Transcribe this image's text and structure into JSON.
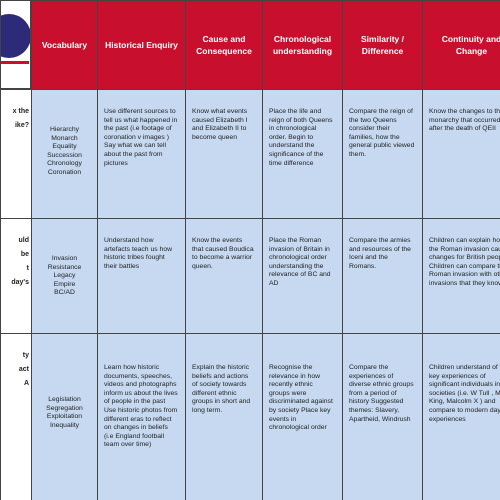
{
  "header": {
    "columns": [
      "Vocabulary",
      "Historical Enquiry",
      "Cause and Consequence",
      "Chronological understanding",
      "Similarity / Difference",
      "Continuity and Change"
    ]
  },
  "rows": [
    {
      "fragments": [
        "x the",
        "ike?"
      ],
      "vocabulary": [
        "Hierarchy",
        "Monarch",
        "Equality",
        "Succession",
        "Chronology",
        "Coronation"
      ],
      "cells": [
        "Use different sources to tell us what happened in the past (i.e footage of coronation v images ) Say what we can tell about the past from pictures",
        "Know what events caused Elizabeth I and Elizabeth II to become queen",
        "Place the life and reign of both Queens in chronological order. Begin to understand the significance of the time difference",
        "Compare the reign of the two Queens consider their families, how the general public viewed them.",
        "Know the changes to the monarchy that occurred after the death of QEII"
      ]
    },
    {
      "fragments": [
        "uld",
        "be",
        "t",
        "day's"
      ],
      "vocabulary": [
        "Invasion",
        "Resistance",
        "Legacy",
        "Empire",
        "BC/AD"
      ],
      "cells": [
        "Understand how artefacts teach us how historic tribes fought their battles",
        "Know the events that caused Boudica to become a warrior queen.",
        "Place the Roman invasion of Britain in chronological order understanding the relevance of BC and AD",
        "Compare the armies and resources of the Iceni and the Romans.",
        "Children can explain how the Roman invasion caused changes for British people. Children can compare the Roman invasion with other invasions that they know"
      ]
    },
    {
      "fragments": [
        "ty",
        "act",
        "A"
      ],
      "vocabulary": [
        "Legislation",
        "Segregation",
        "Exploitation",
        "Inequality"
      ],
      "cells": [
        "Learn how historic documents, speeches, videos and photographs inform us about the lives of people in the past Use historic photos from different eras to reflect on changes in beliefs (i.e England football team over time)",
        "Explain the historic beliefs and actions of society towards different ethnic groups in short and long term.",
        "Recognise the relevance in how recently ethnic groups were discriminated against by society Place key events in chronological order",
        "Compare the experiences of diverse ethnic groups from a period of history Suggested themes: Slavery, Apartheid, Windrush",
        "Children understand of the key experiences of significant individuals in past societies (i.e. W Tull , M L King, Malcolm X ) and compare to modern day experiences"
      ]
    }
  ]
}
